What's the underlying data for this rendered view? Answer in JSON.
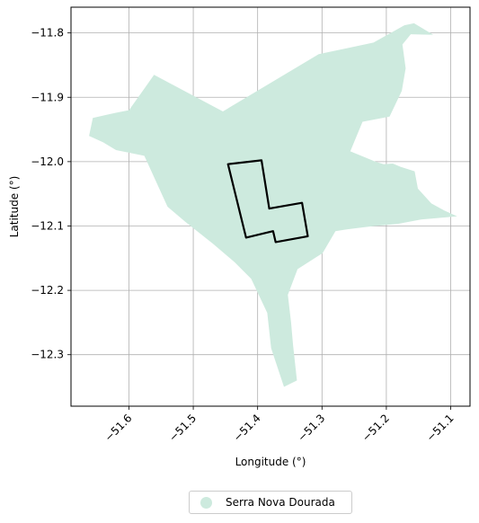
{
  "chart_data": {
    "type": "map",
    "xlabel": "Longitude (°)",
    "ylabel": "Latitude (°)",
    "xlim": [
      -51.69,
      -51.07
    ],
    "ylim": [
      -12.38,
      -11.76
    ],
    "xticks": [
      -51.6,
      -51.5,
      -51.4,
      -51.3,
      -51.2,
      -51.1
    ],
    "yticks": [
      -11.8,
      -11.9,
      -12.0,
      -12.1,
      -12.2,
      -12.3
    ],
    "xtick_labels": [
      "−51.6",
      "−51.5",
      "−51.4",
      "−51.3",
      "−51.2",
      "−51.1"
    ],
    "ytick_labels": [
      "−11.8",
      "−11.9",
      "−12.0",
      "−12.1",
      "−12.2",
      "−12.3"
    ],
    "grid": true,
    "legend_position": "bottom-center",
    "legend_label": "Serra Nova Dourada",
    "region_color": "#cdeade",
    "outline_color": "#000000",
    "region_polygon": [
      [
        -51.561,
        -11.865
      ],
      [
        -51.454,
        -11.922
      ],
      [
        -51.305,
        -11.833
      ],
      [
        -51.22,
        -11.815
      ],
      [
        -51.172,
        -11.788
      ],
      [
        -51.157,
        -11.785
      ],
      [
        -51.127,
        -11.803
      ],
      [
        -51.162,
        -11.802
      ],
      [
        -51.175,
        -11.818
      ],
      [
        -51.17,
        -11.855
      ],
      [
        -51.176,
        -11.89
      ],
      [
        -51.195,
        -11.93
      ],
      [
        -51.237,
        -11.938
      ],
      [
        -51.256,
        -11.984
      ],
      [
        -51.217,
        -12.0
      ],
      [
        -51.204,
        -12.004
      ],
      [
        -51.19,
        -12.003
      ],
      [
        -51.178,
        -12.008
      ],
      [
        -51.156,
        -12.015
      ],
      [
        -51.151,
        -12.042
      ],
      [
        -51.13,
        -12.065
      ],
      [
        -51.11,
        -12.076
      ],
      [
        -51.09,
        -12.085
      ],
      [
        -51.146,
        -12.09
      ],
      [
        -51.183,
        -12.097
      ],
      [
        -51.219,
        -12.1
      ],
      [
        -51.26,
        -12.105
      ],
      [
        -51.279,
        -12.108
      ],
      [
        -51.299,
        -12.142
      ],
      [
        -51.338,
        -12.167
      ],
      [
        -51.353,
        -12.207
      ],
      [
        -51.348,
        -12.25
      ],
      [
        -51.345,
        -12.285
      ],
      [
        -51.339,
        -12.34
      ],
      [
        -51.359,
        -12.35
      ],
      [
        -51.379,
        -12.29
      ],
      [
        -51.385,
        -12.235
      ],
      [
        -51.41,
        -12.182
      ],
      [
        -51.436,
        -12.156
      ],
      [
        -51.469,
        -12.128
      ],
      [
        -51.513,
        -12.093
      ],
      [
        -51.54,
        -12.07
      ],
      [
        -51.576,
        -11.991
      ],
      [
        -51.62,
        -11.982
      ],
      [
        -51.64,
        -11.97
      ],
      [
        -51.662,
        -11.96
      ],
      [
        -51.656,
        -11.932
      ],
      [
        -51.625,
        -11.925
      ],
      [
        -51.6,
        -11.92
      ],
      [
        -51.575,
        -11.885
      ]
    ],
    "outline_polygon": [
      [
        -51.446,
        -12.004
      ],
      [
        -51.394,
        -11.998
      ],
      [
        -51.382,
        -12.073
      ],
      [
        -51.331,
        -12.064
      ],
      [
        -51.322,
        -12.116
      ],
      [
        -51.372,
        -12.125
      ],
      [
        -51.376,
        -12.108
      ],
      [
        -51.418,
        -12.118
      ]
    ]
  }
}
